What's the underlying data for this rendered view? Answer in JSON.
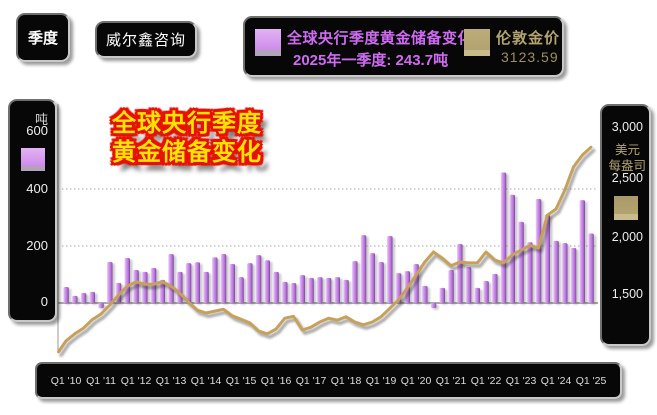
{
  "toolbar": {
    "period_button_label": "季度",
    "brand_label": "威尔鑫咨询"
  },
  "legend": {
    "gold_reserves": {
      "title": "全球央行季度黄金储备变化",
      "subtitle": "2025年一季度: 243.7吨",
      "swatch_color": "#cd8cea",
      "text_color": "#cf6bf2"
    },
    "gold_price": {
      "title": "伦敦金价",
      "value": "3123.59",
      "swatch_color": "#b3a371",
      "text_color": "#b3a371"
    }
  },
  "chart_title": {
    "line1": "全球央行季度",
    "line2": "黄金储备变化",
    "text_color": "#ffe400",
    "outline_color": "#e81000"
  },
  "left_axis": {
    "unit": "吨",
    "ticks": [
      "600",
      "400",
      "200",
      "0"
    ],
    "swatch_color": "#cd8cea"
  },
  "right_axis": {
    "ticks": [
      "3,000",
      "2,500",
      "2,000",
      "1,500"
    ],
    "unit_line1": "美元",
    "unit_line2": "每盎司",
    "unit_color": "#b3a371",
    "swatch_color": "#b3a371"
  },
  "x_axis": {
    "labels": [
      "Q1 '10",
      "Q1 '11",
      "Q1 '12",
      "Q1 '13",
      "Q1 '14",
      "Q1 '15",
      "Q1 '16",
      "Q1 '17",
      "Q1 '18",
      "Q1 '19",
      "Q1 '20",
      "Q1 '21",
      "Q1 '22",
      "Q1 '23",
      "Q1 '24",
      "Q1 '25"
    ]
  },
  "chart_data": {
    "type": "bar+line",
    "title": "全球央行季度黄金储备变化 / 伦敦金价",
    "categories": [
      "2010Q1",
      "2010Q2",
      "2010Q3",
      "2010Q4",
      "2011Q1",
      "2011Q2",
      "2011Q3",
      "2011Q4",
      "2012Q1",
      "2012Q2",
      "2012Q3",
      "2012Q4",
      "2013Q1",
      "2013Q2",
      "2013Q3",
      "2013Q4",
      "2014Q1",
      "2014Q2",
      "2014Q3",
      "2014Q4",
      "2015Q1",
      "2015Q2",
      "2015Q3",
      "2015Q4",
      "2016Q1",
      "2016Q2",
      "2016Q3",
      "2016Q4",
      "2017Q1",
      "2017Q2",
      "2017Q3",
      "2017Q4",
      "2018Q1",
      "2018Q2",
      "2018Q3",
      "2018Q4",
      "2019Q1",
      "2019Q2",
      "2019Q3",
      "2019Q4",
      "2020Q1",
      "2020Q2",
      "2020Q3",
      "2020Q4",
      "2021Q1",
      "2021Q2",
      "2021Q3",
      "2021Q4",
      "2022Q1",
      "2022Q2",
      "2022Q3",
      "2022Q4",
      "2023Q1",
      "2023Q2",
      "2023Q3",
      "2023Q4",
      "2024Q1",
      "2024Q2",
      "2024Q3",
      "2024Q4",
      "2025Q1"
    ],
    "series": [
      {
        "name": "全球央行季度黄金储备变化",
        "type": "bar",
        "axis": "left",
        "unit": "吨",
        "color": "#cd8cea",
        "values": [
          56,
          25,
          35,
          39,
          -18,
          144,
          70,
          158,
          116,
          109,
          123,
          81,
          172,
          109,
          140,
          143,
          109,
          160,
          172,
          137,
          91,
          140,
          168,
          150,
          109,
          74,
          70,
          98,
          88,
          91,
          88,
          91,
          81,
          147,
          238,
          175,
          144,
          235,
          105,
          112,
          137,
          60,
          -18,
          53,
          116,
          207,
          126,
          53,
          77,
          102,
          458,
          380,
          285,
          213,
          365,
          310,
          218,
          210,
          193,
          361,
          243.7
        ]
      },
      {
        "name": "伦敦金价",
        "type": "line",
        "axis": "right",
        "unit": "美元/盎司",
        "color": "#c7a159",
        "values": [
          1075,
          1150,
          1210,
          1300,
          1360,
          1455,
          1560,
          1655,
          1700,
          1675,
          1675,
          1700,
          1655,
          1580,
          1485,
          1400,
          1370,
          1390,
          1410,
          1340,
          1305,
          1265,
          1180,
          1150,
          1200,
          1315,
          1335,
          1190,
          1220,
          1275,
          1315,
          1295,
          1330,
          1275,
          1245,
          1275,
          1330,
          1420,
          1510,
          1635,
          1770,
          1910,
          2015,
          1950,
          1870,
          1910,
          1900,
          1900,
          2015,
          1930,
          1900,
          1985,
          2035,
          2085,
          2060,
          2405,
          2470,
          2670,
          2915,
          3040,
          3123.59
        ]
      }
    ],
    "left_ticks": [
      0,
      200,
      400,
      600
    ],
    "right_ticks": [
      1500,
      2000,
      2500,
      3000
    ],
    "gridlines_left_axis": [
      200,
      400
    ],
    "latest_bar_label": "2025年一季度: 243.7吨",
    "latest_price_label": "3123.59",
    "legend_position": "top"
  }
}
